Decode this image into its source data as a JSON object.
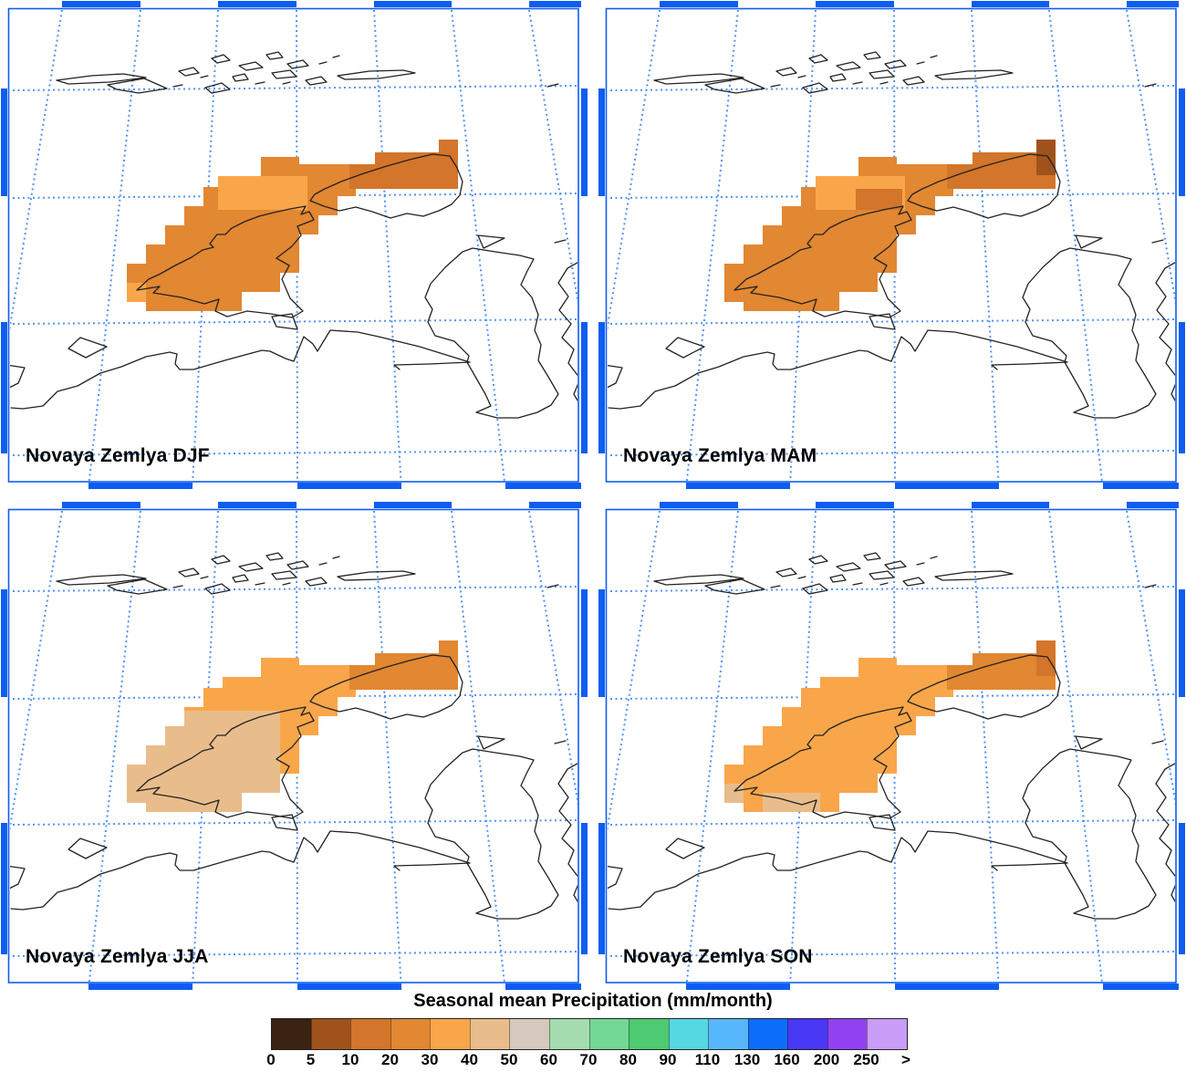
{
  "figure": {
    "colorbar_title": "Seasonal mean Precipitation (mm/month)",
    "frame_color": "#0d5df2",
    "grid_color": "#4f93f7",
    "coast_color": "#222222"
  },
  "colorbar": {
    "tick_labels": [
      "0",
      "5",
      "10",
      "20",
      "30",
      "40",
      "50",
      "60",
      "70",
      "80",
      "90",
      "110",
      "130",
      "160",
      "200",
      "250",
      ">"
    ],
    "bin_colors": [
      "#3a2313",
      "#a0521c",
      "#d3752a",
      "#e28732",
      "#f9a64a",
      "#e9bd8b",
      "#d5c9bd",
      "#a4dcb0",
      "#72d795",
      "#4eca72",
      "#55d7e2",
      "#57b7fc",
      "#0c6efa",
      "#4837f5",
      "#9241f2",
      "#c99df7"
    ]
  },
  "panels": [
    {
      "season": "DJF",
      "label": "Novaya Zemlya DJF",
      "render_bins": {
        "base": 3,
        "mid": 4,
        "ne_arm": 2,
        "tip": 2,
        "sw": 4
      }
    },
    {
      "season": "MAM",
      "label": "Novaya Zemlya MAM",
      "render_bins": {
        "base": 3,
        "mid": 4,
        "spine": 2,
        "ne_arm": 2,
        "tip": 1
      }
    },
    {
      "season": "JJA",
      "label": "Novaya Zemlya JJA",
      "render_bins": {
        "base": 4,
        "south": 5,
        "ne_arm": 3,
        "tip": 3,
        "sw": 5,
        "strip": 5
      }
    },
    {
      "season": "SON",
      "label": "Novaya Zemlya SON",
      "render_bins": {
        "base": 4,
        "ne_arm": 3,
        "tip": 2,
        "sw": 5,
        "strip": 5
      }
    }
  ],
  "chart_data": {
    "type": "heatmap",
    "subtype": "gridded seasonal-mean precipitation mapped over Novaya Zemlya (4 seasonal map panels)",
    "title": "Seasonal mean Precipitation (mm/month)",
    "geography": "Novaya Zemlya archipelago with Franz Josef Land (top), Barents/Kara Sea mainland coast (bottom) and Yamal/Yugorsky coast (right)",
    "panels": [
      {
        "season": "DJF",
        "label": "Novaya Zemlya DJF",
        "regions": [
          {
            "area": "most of island",
            "value_mm_month": "20-30"
          },
          {
            "area": "central-west cells and SW corner cell",
            "value_mm_month": "30-40"
          },
          {
            "area": "northeast arm",
            "value_mm_month": "10-20"
          }
        ]
      },
      {
        "season": "MAM",
        "label": "Novaya Zemlya MAM",
        "regions": [
          {
            "area": "most of island",
            "value_mm_month": "20-30"
          },
          {
            "area": "central-west cells",
            "value_mm_month": "30-40"
          },
          {
            "area": "northeast arm and mid-spine cells",
            "value_mm_month": "10-20"
          },
          {
            "area": "northeast tip cell",
            "value_mm_month": "5-10"
          }
        ]
      },
      {
        "season": "JJA",
        "label": "Novaya Zemlya JJA",
        "regions": [
          {
            "area": "southern island",
            "value_mm_month": "40-50"
          },
          {
            "area": "middle band",
            "value_mm_month": "30-40"
          },
          {
            "area": "northeast arm",
            "value_mm_month": "20-30"
          }
        ]
      },
      {
        "season": "SON",
        "label": "Novaya Zemlya SON",
        "regions": [
          {
            "area": "most of island",
            "value_mm_month": "30-40"
          },
          {
            "area": "northeast arm",
            "value_mm_month": "20-30"
          },
          {
            "area": "northeast tip cell",
            "value_mm_month": "10-20"
          },
          {
            "area": "southwest cells and south strip",
            "value_mm_month": "40-50"
          }
        ]
      }
    ],
    "colorbar": {
      "boundaries_mm_month": [
        0,
        5,
        10,
        20,
        30,
        40,
        50,
        60,
        70,
        80,
        90,
        110,
        130,
        160,
        200,
        250
      ],
      "open_ended_label": ">",
      "colors": [
        "#3a2313",
        "#a0521c",
        "#d3752a",
        "#e28732",
        "#f9a64a",
        "#e9bd8b",
        "#d5c9bd",
        "#a4dcb0",
        "#72d795",
        "#4eca72",
        "#55d7e2",
        "#57b7fc",
        "#0c6efa",
        "#4837f5",
        "#9241f2",
        "#c99df7"
      ],
      "legend_position": "bottom"
    },
    "grid": "dotted blue graticule, alternating blue/white border ticks"
  }
}
